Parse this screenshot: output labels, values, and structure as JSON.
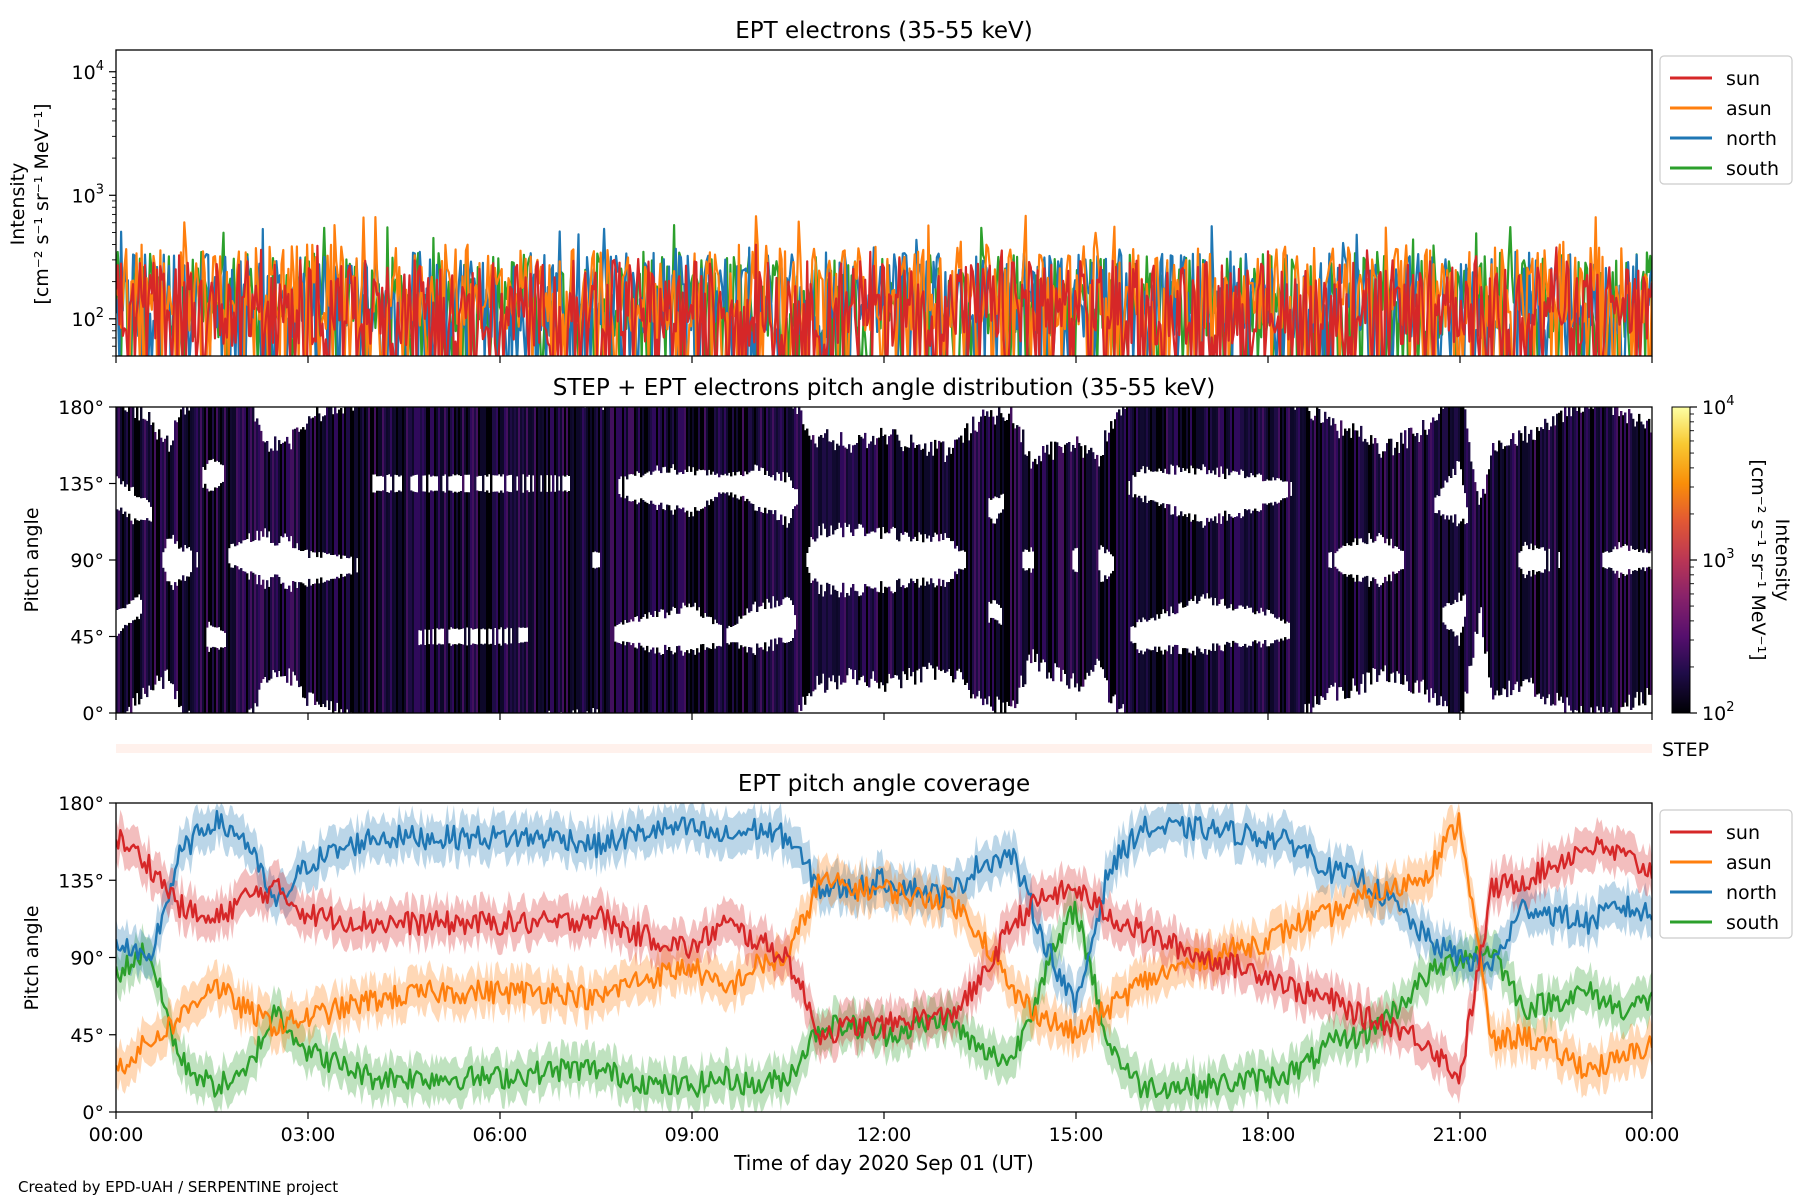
{
  "footer": "Created by EPD-UAH / SERPENTINE project",
  "xlabel": "Time of day 2020 Sep 01 (UT)",
  "time_ticks": [
    "00:00",
    "03:00",
    "06:00",
    "09:00",
    "12:00",
    "15:00",
    "18:00",
    "21:00",
    "00:00"
  ],
  "colors": {
    "sun": "#d62728",
    "asun": "#ff7f0e",
    "north": "#1f77b4",
    "south": "#2ca02c"
  },
  "chart_data": [
    {
      "id": "intensity",
      "type": "line",
      "title": "EPT electrons (35-55 keV)",
      "ylabel_line1": "Intensity",
      "ylabel_line2": "[cm⁻² s⁻¹ sr⁻¹ MeV⁻¹]",
      "yscale": "log",
      "ylim": [
        50,
        15000
      ],
      "yticks": [
        {
          "value": 100,
          "base": "10",
          "exp": "2"
        },
        {
          "value": 1000,
          "base": "10",
          "exp": "3"
        },
        {
          "value": 10000,
          "base": "10",
          "exp": "4"
        }
      ],
      "xlim_hours": [
        0,
        24
      ],
      "legend": "outside-right",
      "series": [
        {
          "name": "sun",
          "color": "#d62728",
          "typical": [
            60,
            300
          ],
          "max": 400
        },
        {
          "name": "asun",
          "color": "#ff7f0e",
          "typical": [
            80,
            400
          ],
          "max": 700
        },
        {
          "name": "north",
          "color": "#1f77b4",
          "typical": [
            70,
            350
          ],
          "max": 600
        },
        {
          "name": "south",
          "color": "#2ca02c",
          "typical": [
            70,
            350
          ],
          "max": 600
        }
      ]
    },
    {
      "id": "pad",
      "type": "heatmap",
      "title": "STEP + EPT electrons pitch angle distribution (35-55 keV)",
      "ylabel": "Pitch angle",
      "ylim": [
        0,
        180
      ],
      "yticks": [
        "0°",
        "45°",
        "90°",
        "135°",
        "180°"
      ],
      "colorbar": {
        "label_line1": "Intensity",
        "label_line2": "[cm⁻² s⁻¹ sr⁻¹ MeV⁻¹]",
        "scale": "log",
        "range": [
          100,
          10000
        ],
        "ticks": [
          {
            "value": 100,
            "base": "10",
            "exp": "2"
          },
          {
            "value": 1000,
            "base": "10",
            "exp": "3"
          },
          {
            "value": 10000,
            "base": "10",
            "exp": "4"
          }
        ]
      }
    },
    {
      "id": "step",
      "type": "heatmap",
      "label": "STEP"
    },
    {
      "id": "coverage",
      "type": "line",
      "title": "EPT pitch angle coverage",
      "ylabel": "Pitch angle",
      "ylim": [
        0,
        180
      ],
      "yticks": [
        "0°",
        "45°",
        "90°",
        "135°",
        "180°"
      ],
      "xlim_hours": [
        0,
        24
      ],
      "legend": "outside-right",
      "series": [
        {
          "name": "sun",
          "color": "#d62728",
          "x": [
            0,
            0.5,
            1,
            1.5,
            2,
            2.5,
            3,
            4,
            5,
            6,
            7,
            7.5,
            8,
            8.5,
            9,
            9.5,
            10,
            10.5,
            11,
            11.5,
            12,
            12.5,
            13,
            13.5,
            14,
            14.5,
            15,
            15.5,
            16,
            17,
            18,
            18.5,
            19,
            19.5,
            20,
            20.5,
            21,
            21.5,
            22,
            22.5,
            23,
            23.5,
            24
          ],
          "y": [
            160,
            145,
            120,
            110,
            125,
            130,
            115,
            110,
            110,
            110,
            110,
            115,
            105,
            100,
            95,
            110,
            100,
            90,
            45,
            50,
            50,
            55,
            55,
            75,
            110,
            125,
            130,
            115,
            105,
            90,
            80,
            70,
            65,
            55,
            50,
            40,
            20,
            130,
            135,
            145,
            155,
            150,
            140
          ]
        },
        {
          "name": "asun",
          "color": "#ff7f0e",
          "x": [
            0,
            0.5,
            1,
            1.5,
            2,
            2.5,
            3,
            4,
            5,
            6,
            7,
            7.5,
            8,
            8.5,
            9,
            9.5,
            10,
            10.5,
            11,
            11.5,
            12,
            12.5,
            13,
            13.5,
            14,
            14.5,
            15,
            15.5,
            16,
            17,
            18,
            18.5,
            19,
            19.5,
            20,
            20.5,
            21,
            21.5,
            22,
            22.5,
            23,
            23.5,
            24
          ],
          "y": [
            25,
            40,
            55,
            75,
            60,
            50,
            55,
            65,
            70,
            70,
            70,
            65,
            75,
            80,
            85,
            70,
            85,
            90,
            135,
            130,
            130,
            125,
            125,
            105,
            70,
            55,
            45,
            60,
            75,
            90,
            100,
            110,
            115,
            125,
            130,
            140,
            170,
            40,
            45,
            35,
            25,
            30,
            40
          ]
        },
        {
          "name": "north",
          "color": "#1f77b4",
          "x": [
            0,
            0.5,
            1,
            1.5,
            2,
            2.5,
            3,
            4,
            5,
            6,
            7,
            7.5,
            8,
            8.5,
            9,
            9.5,
            10,
            10.5,
            11,
            11.5,
            12,
            12.5,
            13,
            13.5,
            14,
            14.5,
            15,
            15.5,
            16,
            17,
            18,
            18.5,
            19,
            19.5,
            20,
            20.5,
            21,
            21.5,
            22,
            22.5,
            23,
            23.5,
            24
          ],
          "y": [
            100,
            85,
            150,
            170,
            160,
            120,
            145,
            160,
            160,
            160,
            160,
            155,
            160,
            165,
            165,
            160,
            165,
            160,
            130,
            130,
            135,
            130,
            125,
            145,
            150,
            100,
            60,
            140,
            165,
            165,
            160,
            155,
            140,
            135,
            120,
            100,
            90,
            85,
            120,
            115,
            110,
            120,
            115
          ]
        },
        {
          "name": "south",
          "color": "#2ca02c",
          "x": [
            0,
            0.5,
            1,
            1.5,
            2,
            2.5,
            3,
            4,
            5,
            6,
            7,
            7.5,
            8,
            8.5,
            9,
            9.5,
            10,
            10.5,
            11,
            11.5,
            12,
            12.5,
            13,
            13.5,
            14,
            14.5,
            15,
            15.5,
            16,
            17,
            18,
            18.5,
            19,
            19.5,
            20,
            20.5,
            21,
            21.5,
            22,
            22.5,
            23,
            23.5,
            24
          ],
          "y": [
            80,
            95,
            30,
            15,
            20,
            60,
            35,
            20,
            20,
            20,
            25,
            25,
            20,
            15,
            15,
            20,
            15,
            20,
            50,
            50,
            45,
            50,
            55,
            35,
            30,
            80,
            120,
            40,
            15,
            15,
            20,
            25,
            40,
            45,
            60,
            80,
            90,
            95,
            60,
            65,
            70,
            60,
            65
          ]
        }
      ]
    }
  ]
}
